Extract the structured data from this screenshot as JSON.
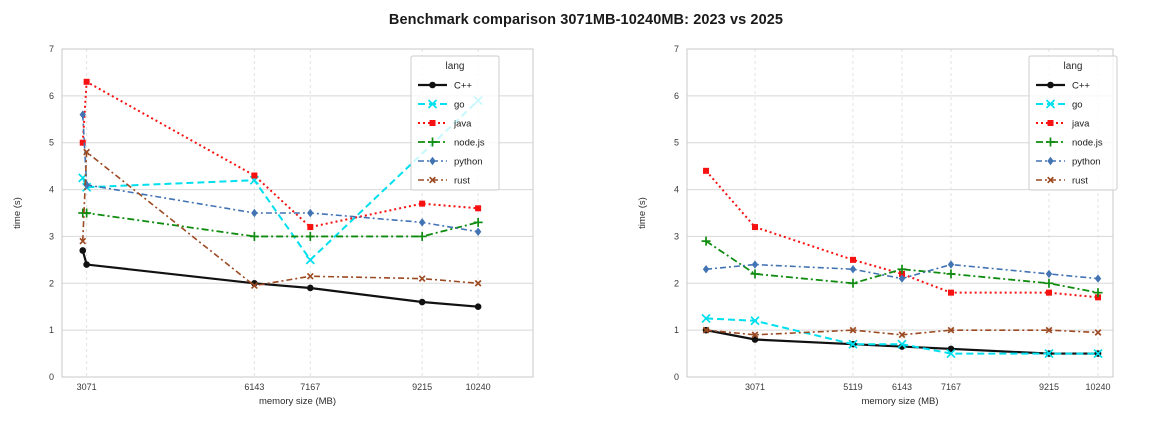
{
  "title": "Benchmark comparison 3071MB-10240MB: 2023 vs 2025",
  "colors": {
    "cpp": "#111111",
    "go": "#00dfee",
    "java": "#f71111",
    "nodejs": "#0f8c0f",
    "python": "#4273b2",
    "rust": "#9c4a22",
    "grid": "#d8d8d8",
    "grid_vertical": "#e3e3e3",
    "spine": "#c8c8c8",
    "tick_text": "#3a3a3a",
    "background": "#ffffff"
  },
  "legend": {
    "title": "lang",
    "entries": [
      "C++",
      "go",
      "java",
      "node.js",
      "python",
      "rust"
    ]
  },
  "chart_data": [
    {
      "type": "line",
      "position": "left",
      "xlabel": "memory size (MB)",
      "ylabel": "time (s)",
      "ylim": [
        0,
        7
      ],
      "yticks": [
        0,
        1,
        2,
        3,
        4,
        5,
        6,
        7
      ],
      "xticks": [
        3071,
        6143,
        7167,
        9215,
        10240
      ],
      "xlim": [
        2620,
        11245
      ],
      "grid": true,
      "legend_title": "lang",
      "legend_position": "upper-right",
      "series": [
        {
          "name": "C++",
          "key": "cpp",
          "x": [
            3000,
            3071,
            6143,
            7167,
            9215,
            10240
          ],
          "y": [
            2.7,
            2.4,
            2.0,
            1.9,
            1.6,
            1.5
          ]
        },
        {
          "name": "go",
          "key": "go",
          "x": [
            3000,
            3071,
            6143,
            7167,
            10240
          ],
          "y": [
            4.25,
            4.05,
            4.2,
            2.5,
            5.9
          ]
        },
        {
          "name": "java",
          "key": "java",
          "x": [
            3000,
            3071,
            6143,
            7167,
            9215,
            10240
          ],
          "y": [
            5.0,
            6.3,
            4.3,
            3.2,
            3.7,
            3.6
          ]
        },
        {
          "name": "node.js",
          "key": "nodejs",
          "x": [
            3000,
            3071,
            6143,
            7167,
            9215,
            10240
          ],
          "y": [
            3.5,
            3.5,
            3.0,
            3.0,
            3.0,
            3.3
          ]
        },
        {
          "name": "python",
          "key": "python",
          "x": [
            3000,
            3071,
            6143,
            7167,
            9215,
            10240
          ],
          "y": [
            5.6,
            4.1,
            3.5,
            3.5,
            3.3,
            3.1
          ]
        },
        {
          "name": "rust",
          "key": "rust",
          "x": [
            3000,
            3071,
            6143,
            7167,
            9215,
            10240
          ],
          "y": [
            2.9,
            4.8,
            1.95,
            2.15,
            2.1,
            2.0
          ]
        }
      ]
    },
    {
      "type": "line",
      "position": "right",
      "xlabel": "memory size (MB)",
      "ylabel": "time (s)",
      "ylim": [
        0,
        7
      ],
      "yticks": [
        0,
        1,
        2,
        3,
        4,
        5,
        6,
        7
      ],
      "xticks": [
        3071,
        5119,
        6143,
        7167,
        9215,
        10240
      ],
      "xlim": [
        1650,
        10553
      ],
      "grid": true,
      "legend_title": "lang",
      "legend_position": "upper-right",
      "series": [
        {
          "name": "C++",
          "key": "cpp",
          "x": [
            2048,
            3071,
            5119,
            6143,
            7167,
            9215,
            10240
          ],
          "y": [
            1.0,
            0.8,
            0.7,
            0.65,
            0.6,
            0.5,
            0.5
          ]
        },
        {
          "name": "go",
          "key": "go",
          "x": [
            2048,
            3071,
            5119,
            6143,
            7167,
            9215,
            10240
          ],
          "y": [
            1.25,
            1.2,
            0.7,
            0.7,
            0.5,
            0.5,
            0.5
          ]
        },
        {
          "name": "java",
          "key": "java",
          "x": [
            2048,
            3071,
            5119,
            6143,
            7167,
            9215,
            10240
          ],
          "y": [
            4.4,
            3.2,
            2.5,
            2.2,
            1.8,
            1.8,
            1.7
          ]
        },
        {
          "name": "node.js",
          "key": "nodejs",
          "x": [
            2048,
            3071,
            5119,
            6143,
            7167,
            9215,
            10240
          ],
          "y": [
            2.9,
            2.2,
            2.0,
            2.3,
            2.2,
            2.0,
            1.8
          ]
        },
        {
          "name": "python",
          "key": "python",
          "x": [
            2048,
            3071,
            5119,
            6143,
            7167,
            9215,
            10240
          ],
          "y": [
            2.3,
            2.4,
            2.3,
            2.1,
            2.4,
            2.2,
            2.1
          ]
        },
        {
          "name": "rust",
          "key": "rust",
          "x": [
            2048,
            3071,
            5119,
            6143,
            7167,
            9215,
            10240
          ],
          "y": [
            1.0,
            0.9,
            1.0,
            0.9,
            1.0,
            1.0,
            0.95
          ]
        }
      ]
    }
  ]
}
